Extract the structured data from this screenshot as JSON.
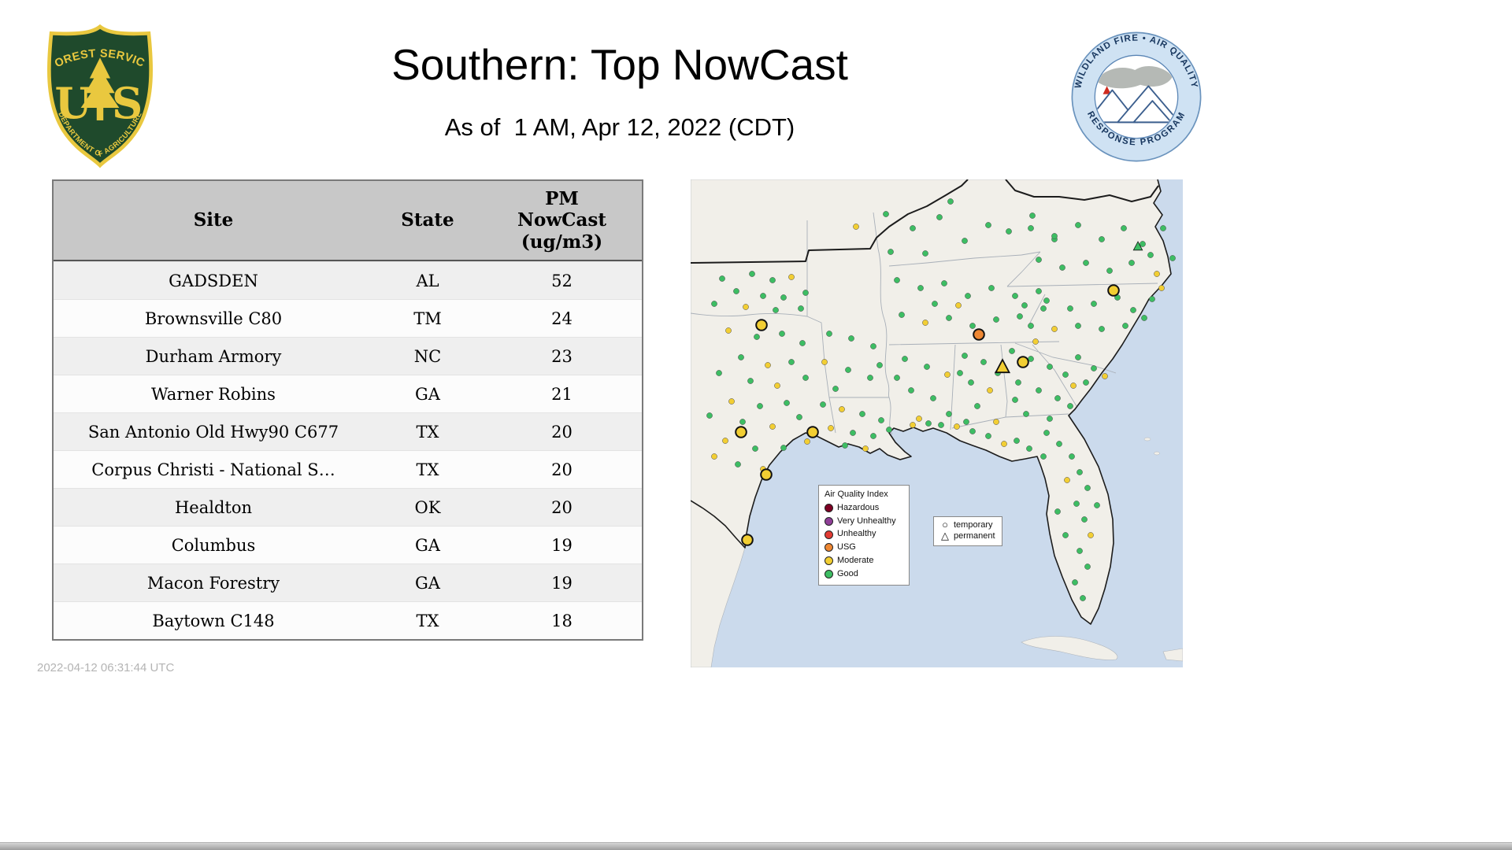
{
  "header": {
    "title": "Southern: Top NowCast",
    "subtitle": "As of  1 AM, Apr 12, 2022 (CDT)"
  },
  "logos": {
    "usfs": {
      "arc_top": "FOREST SERVICE",
      "monogram": [
        "U",
        "S"
      ],
      "arc_bottom": "DEPARTMENT OF AGRICULTURE",
      "shield_green": "#1f4a2c",
      "shield_gold": "#e9c83f"
    },
    "airfire": {
      "arc_top": "WILDLAND FIRE • AIR QUALITY",
      "arc_bottom": "RESPONSE PROGRAM",
      "ring_blue": "#cfe2f3",
      "text_navy": "#17365e"
    }
  },
  "table": {
    "columns": [
      "Site",
      "State",
      "PM\nNowCast\n(ug/m3)"
    ],
    "rows": [
      {
        "site": "GADSDEN",
        "state": "AL",
        "pm": "52"
      },
      {
        "site": "Brownsville C80",
        "state": "TM",
        "pm": "24"
      },
      {
        "site": "Durham Armory",
        "state": "NC",
        "pm": "23"
      },
      {
        "site": "Warner Robins",
        "state": "GA",
        "pm": "21"
      },
      {
        "site": "San Antonio Old Hwy90 C677",
        "state": "TX",
        "pm": "20"
      },
      {
        "site": "Corpus Christi - National S…",
        "state": "TX",
        "pm": "20"
      },
      {
        "site": "Healdton",
        "state": "OK",
        "pm": "20"
      },
      {
        "site": "Columbus",
        "state": "GA",
        "pm": "19"
      },
      {
        "site": "Macon Forestry",
        "state": "GA",
        "pm": "19"
      },
      {
        "site": "Baytown C148",
        "state": "TX",
        "pm": "18"
      }
    ]
  },
  "footer": {
    "timestamp": "2022-04-12 06:31:44 UTC"
  },
  "map": {
    "water_color": "#cbdaec",
    "land_color": "#f1efe9",
    "aqi_colors": {
      "hazardous": "#7e0023",
      "very_unhealthy": "#8f3f97",
      "unhealthy": "#e23b33",
      "usg": "#ee8733",
      "moderate": "#f2ce33",
      "good": "#3dbd63"
    },
    "legend": {
      "title": "Air Quality Index",
      "items": [
        {
          "key": "hazardous",
          "label": "Hazardous"
        },
        {
          "key": "very_unhealthy",
          "label": "Very Unhealthy"
        },
        {
          "key": "unhealthy",
          "label": "Unhealthy"
        },
        {
          "key": "usg",
          "label": "USG"
        },
        {
          "key": "moderate",
          "label": "Moderate"
        },
        {
          "key": "good",
          "label": "Good"
        }
      ]
    },
    "shape_legend": [
      {
        "shape": "circle",
        "glyph": "○",
        "label": "temporary"
      },
      {
        "shape": "triangle",
        "glyph": "△",
        "label": "permanent"
      }
    ],
    "dots": [
      [
        40,
        126,
        "g"
      ],
      [
        78,
        120,
        "g"
      ],
      [
        104,
        128,
        "g"
      ],
      [
        128,
        124,
        "y"
      ],
      [
        58,
        142,
        "g"
      ],
      [
        92,
        148,
        "g"
      ],
      [
        118,
        150,
        "g"
      ],
      [
        146,
        144,
        "g"
      ],
      [
        70,
        162,
        "y"
      ],
      [
        108,
        166,
        "g"
      ],
      [
        140,
        164,
        "g"
      ],
      [
        30,
        158,
        "g"
      ],
      [
        48,
        192,
        "y"
      ],
      [
        84,
        200,
        "g"
      ],
      [
        116,
        196,
        "g"
      ],
      [
        142,
        208,
        "g"
      ],
      [
        64,
        226,
        "g"
      ],
      [
        98,
        236,
        "y"
      ],
      [
        128,
        232,
        "g"
      ],
      [
        36,
        246,
        "g"
      ],
      [
        146,
        252,
        "g"
      ],
      [
        76,
        256,
        "g"
      ],
      [
        110,
        262,
        "y"
      ],
      [
        52,
        282,
        "y"
      ],
      [
        88,
        288,
        "g"
      ],
      [
        122,
        284,
        "g"
      ],
      [
        66,
        308,
        "g"
      ],
      [
        104,
        314,
        "y"
      ],
      [
        138,
        302,
        "g"
      ],
      [
        44,
        332,
        "y"
      ],
      [
        82,
        342,
        "g"
      ],
      [
        118,
        341,
        "g"
      ],
      [
        148,
        333,
        "y"
      ],
      [
        60,
        362,
        "g"
      ],
      [
        92,
        368,
        "y"
      ],
      [
        24,
        300,
        "g"
      ],
      [
        30,
        352,
        "y"
      ],
      [
        168,
        286,
        "g"
      ],
      [
        192,
        292,
        "y"
      ],
      [
        218,
        298,
        "g"
      ],
      [
        242,
        306,
        "g"
      ],
      [
        178,
        316,
        "y"
      ],
      [
        206,
        322,
        "g"
      ],
      [
        232,
        326,
        "g"
      ],
      [
        252,
        318,
        "g"
      ],
      [
        196,
        338,
        "g"
      ],
      [
        222,
        342,
        "y"
      ],
      [
        176,
        196,
        "g"
      ],
      [
        204,
        202,
        "g"
      ],
      [
        232,
        212,
        "g"
      ],
      [
        170,
        232,
        "y"
      ],
      [
        200,
        242,
        "g"
      ],
      [
        228,
        252,
        "g"
      ],
      [
        184,
        266,
        "g"
      ],
      [
        240,
        236,
        "g"
      ],
      [
        248,
        44,
        "g"
      ],
      [
        282,
        62,
        "g"
      ],
      [
        316,
        48,
        "g"
      ],
      [
        348,
        78,
        "g"
      ],
      [
        378,
        58,
        "g"
      ],
      [
        298,
        94,
        "g"
      ],
      [
        404,
        66,
        "g"
      ],
      [
        434,
        46,
        "g"
      ],
      [
        462,
        76,
        "g"
      ],
      [
        254,
        92,
        "g"
      ],
      [
        330,
        28,
        "g"
      ],
      [
        210,
        60,
        "y"
      ],
      [
        262,
        128,
        "g"
      ],
      [
        292,
        138,
        "g"
      ],
      [
        322,
        132,
        "g"
      ],
      [
        352,
        148,
        "g"
      ],
      [
        382,
        138,
        "g"
      ],
      [
        412,
        148,
        "g"
      ],
      [
        442,
        142,
        "g"
      ],
      [
        268,
        172,
        "g"
      ],
      [
        298,
        182,
        "y"
      ],
      [
        328,
        176,
        "g"
      ],
      [
        358,
        186,
        "g"
      ],
      [
        388,
        178,
        "g"
      ],
      [
        418,
        174,
        "g"
      ],
      [
        448,
        164,
        "g"
      ],
      [
        310,
        158,
        "g"
      ],
      [
        340,
        160,
        "y"
      ],
      [
        272,
        228,
        "g"
      ],
      [
        300,
        238,
        "g"
      ],
      [
        326,
        248,
        "y"
      ],
      [
        280,
        268,
        "g"
      ],
      [
        308,
        278,
        "g"
      ],
      [
        328,
        298,
        "g"
      ],
      [
        290,
        304,
        "y"
      ],
      [
        262,
        252,
        "g"
      ],
      [
        348,
        224,
        "g"
      ],
      [
        372,
        232,
        "g"
      ],
      [
        390,
        246,
        "g"
      ],
      [
        356,
        258,
        "g"
      ],
      [
        380,
        268,
        "y"
      ],
      [
        364,
        288,
        "g"
      ],
      [
        350,
        308,
        "g"
      ],
      [
        388,
        308,
        "y"
      ],
      [
        342,
        246,
        "g"
      ],
      [
        408,
        218,
        "g"
      ],
      [
        432,
        228,
        "g"
      ],
      [
        456,
        238,
        "g"
      ],
      [
        476,
        248,
        "g"
      ],
      [
        416,
        258,
        "g"
      ],
      [
        442,
        268,
        "g"
      ],
      [
        466,
        278,
        "g"
      ],
      [
        426,
        298,
        "g"
      ],
      [
        456,
        304,
        "g"
      ],
      [
        482,
        288,
        "g"
      ],
      [
        438,
        206,
        "y"
      ],
      [
        486,
        262,
        "y"
      ],
      [
        412,
        280,
        "g"
      ],
      [
        492,
        226,
        "g"
      ],
      [
        512,
        240,
        "g"
      ],
      [
        526,
        250,
        "y"
      ],
      [
        502,
        258,
        "g"
      ],
      [
        424,
        160,
        "g"
      ],
      [
        452,
        154,
        "g"
      ],
      [
        482,
        164,
        "g"
      ],
      [
        512,
        158,
        "g"
      ],
      [
        542,
        150,
        "g"
      ],
      [
        562,
        166,
        "g"
      ],
      [
        432,
        186,
        "g"
      ],
      [
        462,
        190,
        "y"
      ],
      [
        492,
        186,
        "g"
      ],
      [
        522,
        190,
        "g"
      ],
      [
        552,
        186,
        "g"
      ],
      [
        576,
        176,
        "g"
      ],
      [
        586,
        152,
        "g"
      ],
      [
        598,
        138,
        "y"
      ],
      [
        432,
        62,
        "g"
      ],
      [
        462,
        72,
        "g"
      ],
      [
        492,
        58,
        "g"
      ],
      [
        522,
        76,
        "g"
      ],
      [
        550,
        62,
        "g"
      ],
      [
        574,
        82,
        "g"
      ],
      [
        442,
        102,
        "g"
      ],
      [
        472,
        112,
        "g"
      ],
      [
        502,
        106,
        "g"
      ],
      [
        532,
        116,
        "g"
      ],
      [
        560,
        106,
        "g"
      ],
      [
        584,
        96,
        "g"
      ],
      [
        600,
        62,
        "g"
      ],
      [
        592,
        120,
        "y"
      ],
      [
        612,
        100,
        "g"
      ],
      [
        452,
        322,
        "g"
      ],
      [
        468,
        336,
        "g"
      ],
      [
        484,
        352,
        "g"
      ],
      [
        494,
        372,
        "g"
      ],
      [
        504,
        392,
        "g"
      ],
      [
        490,
        412,
        "g"
      ],
      [
        500,
        432,
        "g"
      ],
      [
        508,
        452,
        "y"
      ],
      [
        494,
        472,
        "g"
      ],
      [
        504,
        492,
        "g"
      ],
      [
        488,
        512,
        "g"
      ],
      [
        498,
        532,
        "g"
      ],
      [
        476,
        452,
        "g"
      ],
      [
        466,
        422,
        "g"
      ],
      [
        478,
        382,
        "y"
      ],
      [
        448,
        352,
        "g"
      ],
      [
        430,
        342,
        "g"
      ],
      [
        414,
        332,
        "g"
      ],
      [
        398,
        336,
        "y"
      ],
      [
        378,
        326,
        "g"
      ],
      [
        358,
        320,
        "g"
      ],
      [
        338,
        314,
        "y"
      ],
      [
        318,
        312,
        "g"
      ],
      [
        302,
        310,
        "g"
      ],
      [
        282,
        312,
        "y"
      ],
      [
        516,
        414,
        "g"
      ]
    ],
    "rings": [
      [
        90,
        185,
        "y"
      ],
      [
        64,
        321,
        "y"
      ],
      [
        155,
        321,
        "y"
      ],
      [
        96,
        375,
        "y"
      ],
      [
        72,
        458,
        "y"
      ],
      [
        366,
        197,
        "o"
      ],
      [
        422,
        232,
        "y"
      ],
      [
        537,
        141,
        "y"
      ]
    ],
    "triangles": [
      [
        396,
        238,
        "y",
        9
      ],
      [
        568,
        85,
        "g",
        6
      ]
    ]
  }
}
